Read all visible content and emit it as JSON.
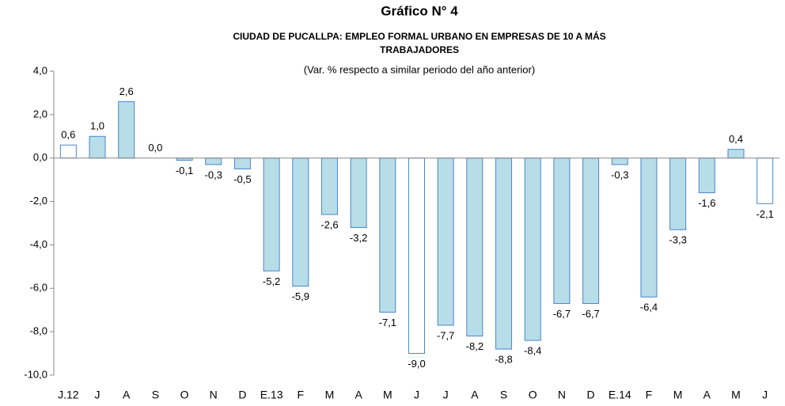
{
  "chart_data": {
    "type": "bar",
    "title": "Gráfico N° 4",
    "subtitle": [
      "CIUDAD DE PUCALLPA:  EMPLEO FORMAL URBANO EN EMPRESAS DE 10 A MÁS",
      "TRABAJADORES"
    ],
    "note": "(Var. % respecto a similar periodo del año anterior)",
    "categories": [
      "J.12",
      "J",
      "A",
      "S",
      "O",
      "N",
      "D",
      "E.13",
      "F",
      "M",
      "A",
      "M",
      "J",
      "J",
      "A",
      "S",
      "O",
      "N",
      "D",
      "E.14",
      "F",
      "M",
      "A",
      "M",
      "J"
    ],
    "values": [
      0.6,
      1.0,
      2.6,
      0.0,
      -0.1,
      -0.3,
      -0.5,
      -5.2,
      -5.9,
      -2.6,
      -3.2,
      -7.1,
      -9.0,
      -7.7,
      -8.2,
      -8.8,
      -8.4,
      -6.7,
      -6.7,
      -0.3,
      -6.4,
      -3.3,
      -1.6,
      0.4,
      -2.1
    ],
    "value_labels": [
      "0,6",
      "1,0",
      "2,6",
      "0,0",
      "-0,1",
      "-0,3",
      "-0,5",
      "-5,2",
      "-5,9",
      "-2,6",
      "-3,2",
      "-7,1",
      "-9,0",
      "-7,7",
      "-8,2",
      "-8,8",
      "-8,4",
      "-6,7",
      "-6,7",
      "-0,3",
      "-6,4",
      "-3,3",
      "-1,6",
      "0,4",
      "-2,1"
    ],
    "colors": [
      "#ffffff",
      "#b7dde8",
      "#b7dde8",
      "#b7dde8",
      "#b7dde8",
      "#b7dde8",
      "#b7dde8",
      "#b7dde8",
      "#b7dde8",
      "#b7dde8",
      "#b7dde8",
      "#b7dde8",
      "#ffffff",
      "#b7dde8",
      "#b7dde8",
      "#b7dde8",
      "#b7dde8",
      "#b7dde8",
      "#b7dde8",
      "#b7dde8",
      "#b7dde8",
      "#b7dde8",
      "#b7dde8",
      "#b7dde8",
      "#ffffff"
    ],
    "edge_color": "#4a86c8",
    "ylim": [
      -10,
      4
    ],
    "yticks": [
      {
        "value": -10,
        "label": "-10,0"
      },
      {
        "value": -8,
        "label": "-8,0"
      },
      {
        "value": -6,
        "label": "-6,0"
      },
      {
        "value": -4,
        "label": "-4,0"
      },
      {
        "value": -2,
        "label": "-2,0"
      },
      {
        "value": 0,
        "label": "0,0"
      },
      {
        "value": 2,
        "label": "2,0"
      },
      {
        "value": 4,
        "label": "4,0"
      }
    ]
  }
}
